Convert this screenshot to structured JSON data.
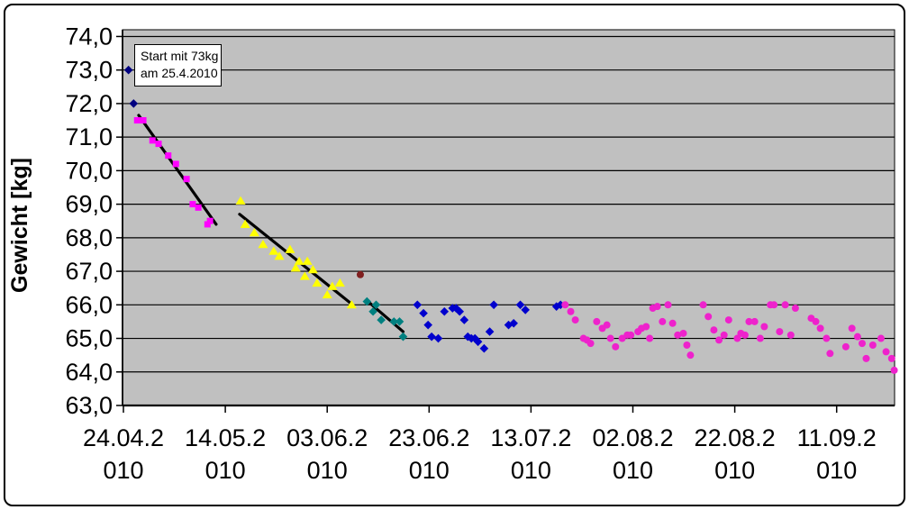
{
  "annotation": {
    "lines": [
      "Start mit 73kg",
      "am 25.4.2010"
    ]
  },
  "chart_data": {
    "type": "scatter",
    "title": "",
    "xlabel": "",
    "ylabel": "Gewicht [kg]",
    "x_unit": "days since 24.04.2010",
    "ylim": [
      63.0,
      74.2
    ],
    "xlim_days": [
      0,
      151.5
    ],
    "grid": "horizontal",
    "legend_position": "none",
    "plot_bg_color": "#c0c0c0",
    "gridline_color": "#000000",
    "y_ticks": [
      {
        "value": 74.0,
        "label": "74,0"
      },
      {
        "value": 73.0,
        "label": "73,0"
      },
      {
        "value": 72.0,
        "label": "72,0"
      },
      {
        "value": 71.0,
        "label": "71,0"
      },
      {
        "value": 70.0,
        "label": "70,0"
      },
      {
        "value": 69.0,
        "label": "69,0"
      },
      {
        "value": 68.0,
        "label": "68,0"
      },
      {
        "value": 67.0,
        "label": "67,0"
      },
      {
        "value": 66.0,
        "label": "66,0"
      },
      {
        "value": 65.0,
        "label": "65,0"
      },
      {
        "value": 64.0,
        "label": "64,0"
      },
      {
        "value": 63.0,
        "label": "63,0"
      }
    ],
    "x_ticks": [
      {
        "day": 0,
        "label": "24.04.2010"
      },
      {
        "day": 20,
        "label": "14.05.2010"
      },
      {
        "day": 40,
        "label": "03.06.2010"
      },
      {
        "day": 60,
        "label": "23.06.2010"
      },
      {
        "day": 80,
        "label": "13.07.2010"
      },
      {
        "day": 100,
        "label": "02.08.2010"
      },
      {
        "day": 120,
        "label": "22.08.2010"
      },
      {
        "day": 140,
        "label": "11.09.2010"
      }
    ],
    "series": [
      {
        "name": "start-navy",
        "color": "#000080",
        "marker": "diamond",
        "points": [
          [
            1,
            73.0
          ],
          [
            2,
            72.0
          ]
        ]
      },
      {
        "name": "phase1-magenta-squares",
        "color": "#ff00ff",
        "marker": "square",
        "points": [
          [
            2.7,
            71.5
          ],
          [
            3.9,
            71.5
          ],
          [
            5.7,
            70.9
          ],
          [
            6.9,
            70.8
          ],
          [
            8.8,
            70.45
          ],
          [
            10.3,
            70.2
          ],
          [
            12.4,
            69.75
          ],
          [
            13.6,
            69.0
          ],
          [
            14.7,
            68.9
          ],
          [
            16.5,
            68.4
          ],
          [
            17.0,
            68.5
          ]
        ]
      },
      {
        "name": "phase2-yellow-triangles",
        "color": "#ffff00",
        "marker": "triangle",
        "points": [
          [
            23,
            69.1
          ],
          [
            23.9,
            68.4
          ],
          [
            25.7,
            68.15
          ],
          [
            27.4,
            67.8
          ],
          [
            29.5,
            67.6
          ],
          [
            30.6,
            67.45
          ],
          [
            32.7,
            67.65
          ],
          [
            33.8,
            67.1
          ],
          [
            34.5,
            67.3
          ],
          [
            35.6,
            66.85
          ],
          [
            36.1,
            67.3
          ],
          [
            37.2,
            67.05
          ],
          [
            38,
            66.65
          ],
          [
            40,
            66.3
          ],
          [
            41,
            66.55
          ],
          [
            42.5,
            66.65
          ],
          [
            44.8,
            66.0
          ]
        ]
      },
      {
        "name": "outlier-dark-red",
        "color": "#802020",
        "marker": "circle",
        "points": [
          [
            46.5,
            66.9
          ]
        ]
      },
      {
        "name": "phase3-teal-diamonds",
        "color": "#008080",
        "marker": "diamond",
        "points": [
          [
            47.8,
            66.1
          ],
          [
            49,
            65.8
          ],
          [
            49.6,
            66.0
          ],
          [
            50.6,
            65.55
          ],
          [
            53.1,
            65.5
          ],
          [
            54.2,
            65.5
          ],
          [
            54.9,
            65.05
          ]
        ]
      },
      {
        "name": "phase4-blue-diamonds",
        "color": "#0000cd",
        "marker": "diamond",
        "points": [
          [
            57.7,
            66.0
          ],
          [
            58.9,
            65.75
          ],
          [
            59.8,
            65.4
          ],
          [
            60.5,
            65.05
          ],
          [
            61.8,
            65.0
          ],
          [
            63,
            65.8
          ],
          [
            64.6,
            65.9
          ],
          [
            65.3,
            65.9
          ],
          [
            66,
            65.8
          ],
          [
            66.9,
            65.55
          ],
          [
            67.6,
            65.05
          ],
          [
            68.3,
            65.0
          ],
          [
            69,
            65.0
          ],
          [
            69.6,
            64.9
          ],
          [
            70.8,
            64.7
          ],
          [
            71.9,
            65.2
          ],
          [
            72.7,
            66.0
          ],
          [
            75.6,
            65.4
          ],
          [
            76.6,
            65.45
          ],
          [
            77.9,
            66.0
          ],
          [
            78.9,
            65.85
          ],
          [
            85,
            65.95
          ],
          [
            85.8,
            66.0
          ]
        ]
      },
      {
        "name": "phase5-pink-circles",
        "color": "#ee22cc",
        "marker": "circle",
        "points": [
          [
            86.7,
            66.0
          ],
          [
            87.8,
            65.8
          ],
          [
            88.7,
            65.55
          ],
          [
            90.3,
            65.0
          ],
          [
            91,
            64.95
          ],
          [
            91.7,
            64.85
          ],
          [
            92.9,
            65.5
          ],
          [
            94,
            65.3
          ],
          [
            94.9,
            65.4
          ],
          [
            95.6,
            65.0
          ],
          [
            96.6,
            64.75
          ],
          [
            97.9,
            65.0
          ],
          [
            98.9,
            65.1
          ],
          [
            99.6,
            65.1
          ],
          [
            101,
            65.2
          ],
          [
            101.7,
            65.3
          ],
          [
            102.6,
            65.35
          ],
          [
            103.3,
            65.0
          ],
          [
            103.9,
            65.9
          ],
          [
            104.8,
            65.95
          ],
          [
            105.8,
            65.5
          ],
          [
            106.9,
            66.0
          ],
          [
            107.8,
            65.45
          ],
          [
            108.8,
            65.1
          ],
          [
            109.9,
            65.15
          ],
          [
            110.6,
            64.8
          ],
          [
            111.3,
            64.5
          ],
          [
            113.8,
            66.0
          ],
          [
            114.8,
            65.65
          ],
          [
            115.9,
            65.25
          ],
          [
            116.9,
            64.95
          ],
          [
            117.9,
            65.1
          ],
          [
            118.8,
            65.55
          ],
          [
            120.5,
            65.0
          ],
          [
            121.2,
            65.15
          ],
          [
            122,
            65.1
          ],
          [
            122.8,
            65.5
          ],
          [
            123.9,
            65.5
          ],
          [
            125,
            65.0
          ],
          [
            125.8,
            65.35
          ],
          [
            127,
            66.0
          ],
          [
            127.7,
            66.0
          ],
          [
            128.8,
            65.2
          ],
          [
            129.9,
            66.0
          ],
          [
            131,
            65.1
          ],
          [
            131.9,
            65.9
          ],
          [
            135,
            65.6
          ],
          [
            135.9,
            65.5
          ],
          [
            136.8,
            65.3
          ],
          [
            138,
            65.0
          ],
          [
            138.7,
            64.55
          ],
          [
            141.8,
            64.75
          ],
          [
            143,
            65.3
          ],
          [
            144.1,
            65.05
          ],
          [
            145,
            64.85
          ],
          [
            145.8,
            64.4
          ],
          [
            147.1,
            64.8
          ],
          [
            148.7,
            65.0
          ],
          [
            149.7,
            64.6
          ],
          [
            150.8,
            64.4
          ],
          [
            151.3,
            64.05
          ]
        ]
      }
    ],
    "trendlines": [
      {
        "name": "trend-phase1",
        "color": "#000000",
        "from": [
          3.0,
          71.65
        ],
        "to": [
          18.2,
          68.4
        ]
      },
      {
        "name": "trend-phase2",
        "color": "#000000",
        "from": [
          22.8,
          68.7
        ],
        "to": [
          44.6,
          66.05
        ]
      },
      {
        "name": "trend-phase3",
        "color": "#000000",
        "from": [
          48.0,
          66.1
        ],
        "to": [
          54.9,
          65.2
        ]
      }
    ]
  }
}
